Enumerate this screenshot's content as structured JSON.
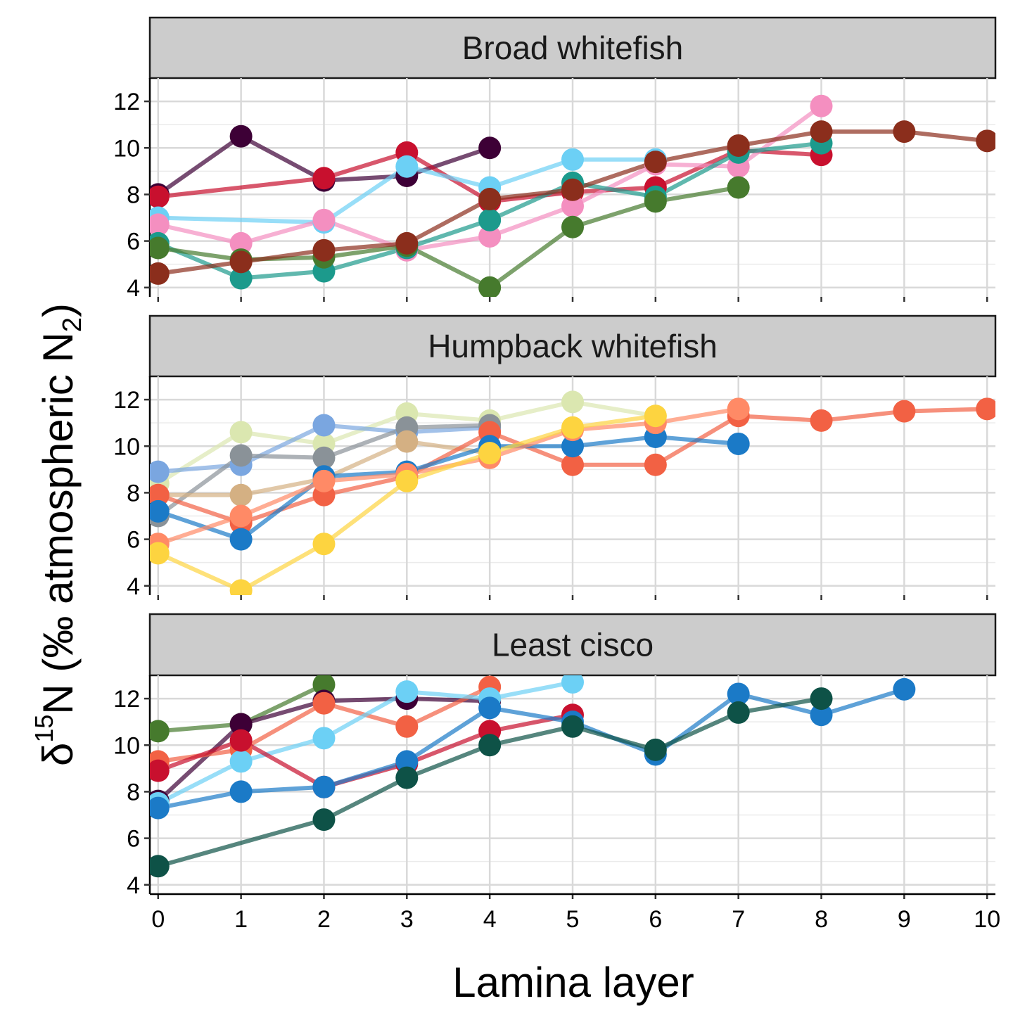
{
  "chart_data": {
    "type": "line",
    "xlabel": "Lamina layer",
    "ylabel": {
      "delta": "δ",
      "sup": "15",
      "main": "N (‰  atmospheric N",
      "sub": "2",
      "close": ")"
    },
    "x_ticks": [
      0,
      1,
      2,
      3,
      4,
      5,
      6,
      7,
      8,
      9,
      10
    ],
    "y_ticks": [
      4,
      6,
      8,
      10,
      12
    ],
    "xlim": [
      -0.1,
      10.1
    ],
    "ylim": [
      3.6,
      13.0
    ],
    "grid": true,
    "panels": [
      {
        "title": "Broad whitefish",
        "series": [
          {
            "color": "#3d0036",
            "x": [
              0,
              1,
              2,
              3,
              4
            ],
            "y": [
              8.0,
              10.5,
              8.6,
              8.8,
              10.0
            ]
          },
          {
            "color": "#c8102e",
            "x": [
              0,
              2,
              3,
              4,
              5,
              6,
              7,
              8
            ],
            "y": [
              7.9,
              8.7,
              9.8,
              7.7,
              8.1,
              8.3,
              9.9,
              9.7
            ]
          },
          {
            "color": "#6cd0f5",
            "x": [
              0,
              2,
              3,
              4,
              5,
              6
            ],
            "y": [
              7.0,
              6.8,
              9.2,
              8.3,
              9.5,
              9.5
            ]
          },
          {
            "color": "#f48fc0",
            "x": [
              0,
              1,
              2,
              3,
              4,
              5,
              6,
              7,
              8
            ],
            "y": [
              6.7,
              5.9,
              6.9,
              5.6,
              6.2,
              7.5,
              9.3,
              9.2,
              11.8
            ]
          },
          {
            "color": "#1c9a8c",
            "x": [
              0,
              1,
              2,
              3,
              4,
              5,
              6,
              7,
              8
            ],
            "y": [
              5.9,
              4.4,
              4.7,
              5.7,
              6.9,
              8.5,
              7.9,
              9.8,
              10.2
            ]
          },
          {
            "color": "#467a2d",
            "x": [
              0,
              1,
              2,
              3,
              4,
              5,
              6,
              7
            ],
            "y": [
              5.7,
              5.2,
              5.3,
              5.8,
              4.0,
              6.6,
              7.7,
              8.3
            ]
          },
          {
            "color": "#8b2e1c",
            "x": [
              0,
              1,
              2,
              3,
              4,
              5,
              6,
              7,
              8,
              9,
              10
            ],
            "y": [
              4.6,
              5.1,
              5.6,
              5.9,
              7.8,
              8.2,
              9.4,
              10.1,
              10.7,
              10.7,
              10.3
            ]
          }
        ]
      },
      {
        "title": "Humpback whitefish",
        "series": [
          {
            "color": "#dbe7b0",
            "x": [
              0,
              1,
              2,
              3,
              4,
              5,
              6
            ],
            "y": [
              8.4,
              10.6,
              10.1,
              11.4,
              11.1,
              11.9,
              11.3
            ]
          },
          {
            "color": "#7aa6e0",
            "x": [
              0,
              1,
              2,
              3,
              4
            ],
            "y": [
              8.9,
              9.2,
              10.9,
              10.6,
              10.8
            ]
          },
          {
            "color": "#8a9298",
            "x": [
              0,
              1,
              2,
              3,
              4
            ],
            "y": [
              7.0,
              9.6,
              9.5,
              10.8,
              10.9
            ]
          },
          {
            "color": "#d4b083",
            "x": [
              0,
              1,
              2,
              3,
              4
            ],
            "y": [
              7.9,
              7.9,
              8.6,
              10.2,
              9.7
            ]
          },
          {
            "color": "#f26144",
            "x": [
              0,
              1,
              2,
              3,
              4,
              5,
              6,
              7,
              8,
              9,
              10
            ],
            "y": [
              7.9,
              6.7,
              7.9,
              8.7,
              10.6,
              9.2,
              9.2,
              11.3,
              11.1,
              11.5,
              11.6
            ]
          },
          {
            "color": "#1b7ac7",
            "x": [
              0,
              1,
              2,
              3,
              4,
              5,
              6,
              7
            ],
            "y": [
              7.2,
              6.0,
              8.7,
              8.9,
              10.0,
              10.0,
              10.4,
              10.1
            ]
          },
          {
            "color": "#ff8a66",
            "x": [
              0,
              1,
              2,
              3,
              4,
              5,
              6,
              7
            ],
            "y": [
              5.8,
              7.0,
              8.5,
              8.8,
              9.5,
              10.7,
              11.0,
              11.6
            ]
          },
          {
            "color": "#fdd440",
            "x": [
              0,
              1,
              2,
              3,
              4,
              5,
              6
            ],
            "y": [
              5.4,
              3.8,
              5.8,
              8.5,
              9.7,
              10.8,
              11.3
            ]
          }
        ]
      },
      {
        "title": "Least cisco",
        "series": [
          {
            "color": "#467a2d",
            "x": [
              0,
              1,
              2
            ],
            "y": [
              10.6,
              10.9,
              12.6
            ]
          },
          {
            "color": "#3d0036",
            "x": [
              0,
              1,
              2,
              3,
              4
            ],
            "y": [
              7.6,
              10.9,
              11.9,
              12.0,
              11.9
            ]
          },
          {
            "color": "#f26144",
            "x": [
              0,
              1,
              2,
              3,
              4
            ],
            "y": [
              9.3,
              9.8,
              11.8,
              10.8,
              12.5
            ]
          },
          {
            "color": "#6cd0f5",
            "x": [
              0,
              1,
              2,
              3,
              4,
              5
            ],
            "y": [
              7.5,
              9.3,
              10.3,
              12.3,
              12.0,
              12.7
            ]
          },
          {
            "color": "#c8102e",
            "x": [
              0,
              1,
              2,
              3,
              4,
              5
            ],
            "y": [
              8.9,
              10.2,
              8.2,
              9.2,
              10.6,
              11.3
            ]
          },
          {
            "color": "#1b7ac7",
            "x": [
              0,
              1,
              2,
              3,
              4,
              5,
              6,
              7,
              8,
              9
            ],
            "y": [
              7.3,
              8.0,
              8.2,
              9.3,
              11.6,
              11.0,
              9.6,
              12.2,
              11.3,
              12.4
            ]
          },
          {
            "color": "#0e5247",
            "x": [
              0,
              2,
              3,
              4,
              5,
              6,
              7,
              8
            ],
            "y": [
              4.8,
              6.8,
              8.6,
              10.0,
              10.8,
              9.8,
              11.4,
              12.0
            ]
          }
        ]
      }
    ]
  }
}
